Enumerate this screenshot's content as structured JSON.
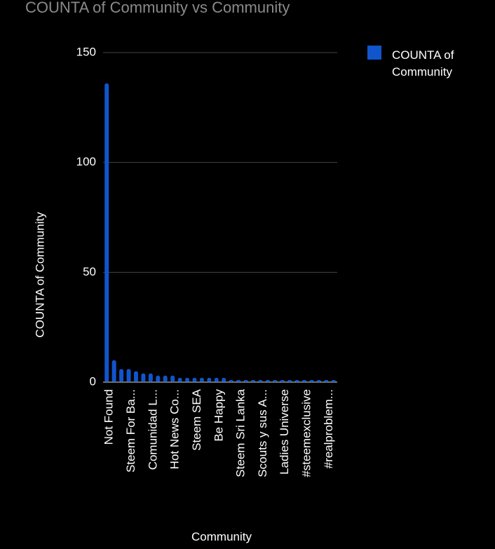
{
  "chart_data": {
    "type": "bar",
    "title": "COUNTA of Community vs Community",
    "x_label": "Community",
    "y_label": "COUNTA of Community",
    "categories": [
      "Not Found",
      null,
      null,
      "Steem For Ba...",
      null,
      null,
      "Comunidad L...",
      null,
      null,
      "Hot News Co...",
      null,
      null,
      "Steem SEA",
      null,
      null,
      "Be Happy",
      null,
      null,
      "Steem Sri Lanka",
      null,
      null,
      "Scouts y sus A...",
      null,
      null,
      "Ladies Universe",
      null,
      null,
      "#steemexclusive",
      null,
      null,
      "#realproblem...",
      null
    ],
    "series": [
      {
        "name": "COUNTA of Community",
        "color": "#1155cc",
        "values": [
          136,
          10,
          6,
          6,
          5,
          4,
          4,
          3,
          3,
          3,
          2,
          2,
          2,
          2,
          2,
          2,
          2,
          1,
          1,
          1,
          1,
          1,
          1,
          1,
          1,
          1,
          1,
          1,
          1,
          1,
          1,
          1
        ]
      }
    ],
    "ylim": [
      0,
      150
    ],
    "yticks": [
      0,
      50,
      100,
      150
    ],
    "grid": true,
    "legend": "right"
  }
}
